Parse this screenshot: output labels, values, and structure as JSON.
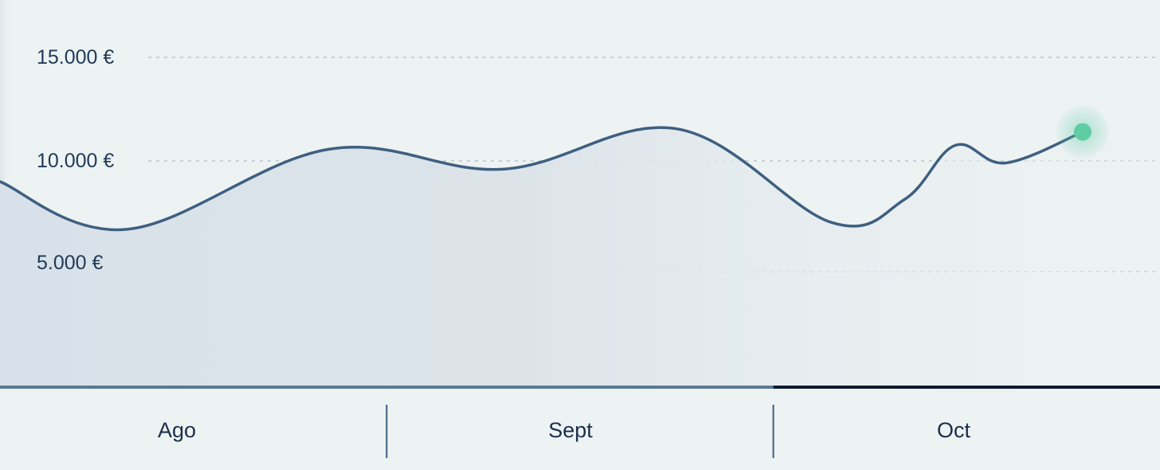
{
  "chart_data": {
    "type": "area",
    "title": "",
    "xlabel": "",
    "ylabel": "",
    "currency_suffix": "€",
    "y_ticks": [
      {
        "value": 15000,
        "label": "15.000 €"
      },
      {
        "value": 10000,
        "label": "10.000 €"
      },
      {
        "value": 5000,
        "label": "5.000 €"
      }
    ],
    "ylim": [
      0,
      15000
    ],
    "grid": true,
    "categories": [
      "Ago",
      "Sept",
      "Oct"
    ],
    "selected_category": "Oct",
    "series": [
      {
        "points": [
          {
            "x": 0.0,
            "y": 9000
          },
          {
            "x": 0.33,
            "y": 6700
          },
          {
            "x": 0.85,
            "y": 10560
          },
          {
            "x": 1.3,
            "y": 9600
          },
          {
            "x": 1.75,
            "y": 11550
          },
          {
            "x": 2.15,
            "y": 7030
          },
          {
            "x": 2.34,
            "y": 8150
          },
          {
            "x": 2.47,
            "y": 10750
          },
          {
            "x": 2.6,
            "y": 9900
          },
          {
            "x": 2.8,
            "y": 11400
          }
        ]
      }
    ],
    "highlight_point": {
      "x": 2.8,
      "y": 11400
    }
  },
  "colors": {
    "background": "#edf2f3",
    "line": "#3e5f80",
    "area_fill": "#d9e2ea",
    "grid": "#b9c6cd",
    "axis_bar": "#5b7a93",
    "selected_bar": "#0e1b2f",
    "highlight": "#5fcca4",
    "label": "#1f3a57"
  }
}
